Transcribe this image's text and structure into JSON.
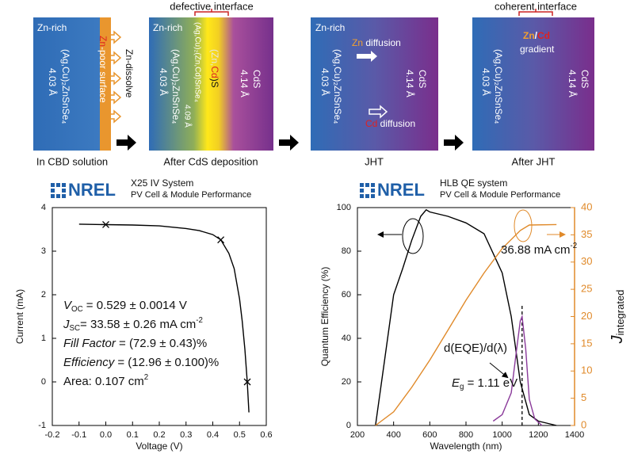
{
  "panels": [
    {
      "zn_rich": "Zn-rich",
      "surface": [
        "Zn",
        "-poor surface"
      ],
      "compound": "(Ag,Cu)₂ZnSnSe₄",
      "lattice": "4.03 Å",
      "process": "Zn-dissolve",
      "caption": "In CBD solution"
    },
    {
      "header": "defective interface",
      "zn_rich": "Zn-rich",
      "compound": "(Ag,Cu)₂ZnSnSe₄",
      "lattice": "4.03 Å",
      "interlayer": "(Ag,Cu)₂(Zn,Cd)SnSe₄",
      "interlayer_lattice": "4.09 Å",
      "buffer": [
        "(Zn,",
        "Cd",
        ")S"
      ],
      "cds": "CdS",
      "cds_lattice": "4.14 Å",
      "caption": "After CdS deposition"
    },
    {
      "zn_rich": "Zn-rich",
      "zn_diffusion": [
        "Zn",
        " diffusion"
      ],
      "cd_diffusion": [
        "Cd",
        " diffusion"
      ],
      "compound": "(Ag,Cu)₂ZnSnSe₄",
      "lattice": "4.03 Å",
      "cds": "CdS",
      "cds_lattice": "4.14 Å",
      "caption": "JHT"
    },
    {
      "header": "coherent interface",
      "gradient": [
        "Zn",
        "/",
        "Cd",
        "gradient"
      ],
      "compound": "(Ag,Cu)₂ZnSnSe₄",
      "lattice": "4.03 Å",
      "cds": "CdS",
      "cds_lattice": "4.14 Å",
      "caption": "After JHT"
    }
  ],
  "chart_data": [
    {
      "type": "line",
      "logo": "NREL",
      "title": "X25 IV System",
      "subtitle": "PV Cell & Module Performance",
      "x_label": "Voltage (V)",
      "y_label": "Current (mA)",
      "xlim": [
        -0.2,
        0.6
      ],
      "xticks": [
        -0.2,
        -0.1,
        {
          "value": 0,
          "label": "0.0"
        },
        0.1,
        0.2,
        0.3,
        0.4,
        0.5,
        0.6
      ],
      "ylim": [
        -1,
        4
      ],
      "yticks": [
        -1,
        0,
        1,
        2,
        3,
        4
      ],
      "grid": false,
      "series": [
        {
          "color": "#000000",
          "x": [
            -0.1,
            0,
            0.1,
            0.2,
            0.3,
            0.35,
            0.4,
            0.43,
            0.46,
            0.48,
            0.5,
            0.51,
            0.52,
            0.529,
            0.535
          ],
          "values": [
            3.62,
            3.61,
            3.6,
            3.58,
            3.52,
            3.47,
            3.38,
            3.26,
            2.95,
            2.6,
            1.9,
            1.4,
            0.75,
            0,
            -0.7
          ]
        }
      ],
      "markers": {
        "x": [
          0,
          0.43,
          0.529
        ],
        "values": [
          3.61,
          3.26,
          0
        ]
      },
      "annotations": [
        {
          "italic": "V",
          "sub": "OC",
          "text": "  = 0.529 ± 0.0014 V"
        },
        {
          "italic": "J",
          "sub": "SC",
          "text": "= 33.58 ± 0.26 mA cm",
          "sup": "-2"
        },
        {
          "italic": "Fill Factor",
          "text": " = (72.9 ± 0.43)%"
        },
        {
          "italic": "Efficiency",
          "text": " = (12.96 ± 0.100)%"
        },
        {
          "text": "Area: 0.107 cm",
          "sup": "2"
        }
      ]
    },
    {
      "type": "line",
      "logo": "NREL",
      "title": "HLB QE system",
      "subtitle": "PV Cell & Module Performance",
      "x_label": "Wavelength (nm)",
      "y_label": "Quantum Efficiency (%)",
      "y2_label": {
        "italic": "J",
        "sub": "integrated"
      },
      "xlim": [
        200,
        1400
      ],
      "xticks": [
        200,
        400,
        600,
        800,
        1000,
        1200,
        1400
      ],
      "ylim": [
        0,
        100
      ],
      "yticks": [
        0,
        20,
        40,
        60,
        80,
        100
      ],
      "y2lim": [
        0,
        40
      ],
      "y2ticks": [
        0,
        5,
        10,
        15,
        20,
        25,
        30,
        35,
        40
      ],
      "y2_color": "#e08a2a",
      "grid": false,
      "series": [
        {
          "color": "#000000",
          "x": [
            300,
            350,
            400,
            450,
            500,
            550,
            580,
            600,
            700,
            800,
            900,
            1000,
            1050,
            1100,
            1150,
            1200,
            1300
          ],
          "values": [
            0,
            30,
            60,
            72,
            85,
            96,
            99,
            98,
            96,
            93,
            88,
            70,
            50,
            20,
            5,
            2,
            0
          ]
        },
        {
          "color": "#8a3a9a",
          "x": [
            950,
            1000,
            1050,
            1080,
            1100,
            1110,
            1130,
            1150,
            1180,
            1220
          ],
          "values": [
            2,
            5,
            15,
            35,
            48,
            50,
            35,
            12,
            3,
            0
          ]
        },
        {
          "color": "#e08a2a",
          "axis": "y2",
          "x": [
            300,
            400,
            500,
            600,
            700,
            800,
            900,
            1000,
            1100,
            1150,
            1300
          ],
          "values": [
            0,
            2.5,
            7,
            12,
            17.5,
            23,
            28,
            32.5,
            35.8,
            36.8,
            36.88
          ]
        }
      ],
      "vline": 1110,
      "annotations": [
        {
          "text": "36.88 mA cm",
          "sup": "-2"
        },
        {
          "text": "d(EQE)/d(λ)"
        },
        {
          "italic": "E",
          "sub": "g",
          "text": " = 1.11 eV"
        }
      ]
    }
  ]
}
